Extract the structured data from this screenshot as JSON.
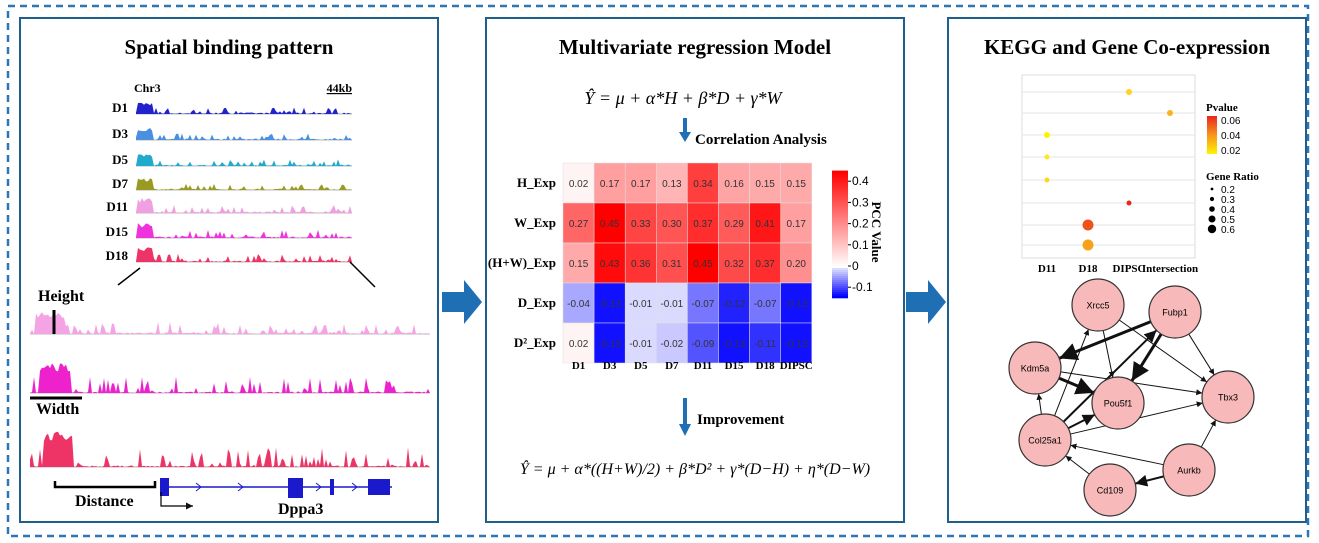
{
  "left": {
    "title": "Spatial binding pattern",
    "chromosome": "Chr3",
    "scale": "44kb",
    "tracks": [
      "D1",
      "D3",
      "D5",
      "D7",
      "D11",
      "D15",
      "D18"
    ],
    "height": "Height",
    "width": "Width",
    "distance": "Distance",
    "gene": "Dppa3"
  },
  "middle": {
    "title": "Multivariate regression Model",
    "equation1": "Ŷ = μ + α*H + β*D + γ*W",
    "step1": "Correlation Analysis",
    "heatmap": {
      "rows": [
        "H_Exp",
        "W_Exp",
        "(H+W)_Exp",
        "D_Exp",
        "D²_Exp"
      ],
      "columns": [
        "D1",
        "D3",
        "D5",
        "D7",
        "D11",
        "D15",
        "D18",
        "DIPSC"
      ],
      "cells": [
        [
          "0.02",
          "0.17",
          "0.17",
          "0.13",
          "0.34",
          "0.16",
          "0.15",
          "0.15"
        ],
        [
          "0.27",
          "0.45",
          "0.33",
          "0.30",
          "0.37",
          "0.29",
          "0.41",
          "0.17"
        ],
        [
          "0.15",
          "0.43",
          "0.36",
          "0.31",
          "0.45",
          "0.32",
          "0.37",
          "0.20"
        ],
        [
          "-0.04",
          "-0.13",
          "-0.01",
          "-0.01",
          "-0.07",
          "-0.12",
          "-0.07",
          "-0.13"
        ],
        [
          "0.02",
          "-0.13",
          "-0.01",
          "-0.02",
          "-0.09",
          "-0.13",
          "-0.11",
          "-0.13"
        ]
      ],
      "legend_title": "PCC Value",
      "legend_ticks": [
        0.4,
        0.3,
        0.2,
        0.1,
        0,
        -0.1
      ]
    },
    "step2": "Improvement",
    "equation2": "Ŷ = μ + α*((H+W)/2) + β*D² + γ*(D−H) + η*(D−W)"
  },
  "right": {
    "title": "KEGG and Gene Co-expression",
    "dotplot": {
      "categories": [
        "D11",
        "D18",
        "DIPSC",
        "Intersection"
      ],
      "pvalue_title": "Pvalue",
      "pvalue_ticks": [
        0.06,
        0.04,
        0.02
      ],
      "ratio_title": "Gene Ratio",
      "ratio_ticks": [
        0.2,
        0.3,
        0.4,
        0.5,
        0.6
      ]
    },
    "network": {
      "nodes": [
        "Xrcc5",
        "Fubp1",
        "Kdm5a",
        "Pou5f1",
        "Tbx3",
        "Col25a1",
        "Aurkb",
        "Cd109"
      ]
    }
  }
}
